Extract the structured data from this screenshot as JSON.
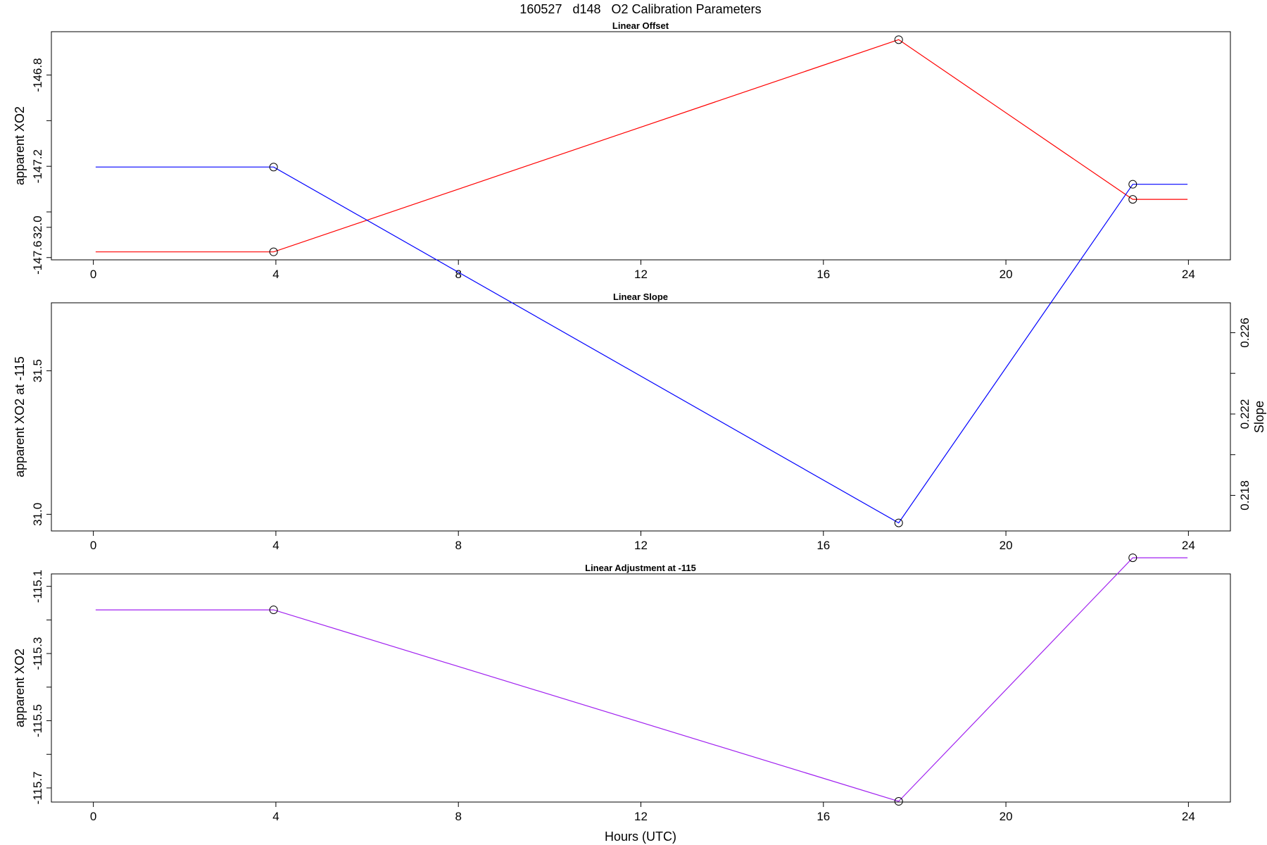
{
  "figure": {
    "title": "160527   d148   O2 Calibration Parameters"
  },
  "colors": {
    "offset": "#ff0000",
    "slope": "#0000ff",
    "adjustment": "#a020f0",
    "marker": "#000000"
  },
  "chart_data": [
    {
      "type": "line",
      "title": "Linear Offset",
      "ylabel": "apparent XO2",
      "xlabel": "",
      "x_ticks": [
        0,
        4,
        8,
        12,
        16,
        20,
        24
      ],
      "y_ticks": [
        -147.6,
        -147.4,
        -147.2,
        -147.0,
        -146.8
      ],
      "y_tick_labels": [
        "-147.6",
        "",
        "-147.2",
        "",
        "-146.8"
      ],
      "xlim": [
        -0.92,
        24.92
      ],
      "ylim": [
        -147.61,
        -146.61
      ],
      "series": [
        {
          "x": [
            0.05,
            3.95,
            17.65,
            22.78,
            23.98
          ],
          "y": [
            -147.575,
            -147.575,
            -146.645,
            -147.345,
            -147.345
          ]
        }
      ],
      "markers": {
        "x": [
          3.95,
          17.65,
          22.78
        ],
        "y": [
          -147.575,
          -146.645,
          -147.345
        ]
      }
    },
    {
      "type": "line",
      "title": "Linear Slope",
      "ylabel": "apparent XO2 at -115",
      "ylabel_right": "Slope",
      "xlabel": "",
      "x_ticks": [
        0,
        4,
        8,
        12,
        16,
        20,
        24
      ],
      "y_ticks": [
        31.0,
        31.5,
        32.0
      ],
      "y_tick_labels": [
        "31.0",
        "31.5",
        "32.0"
      ],
      "y2_ticks": [
        0.218,
        0.22,
        0.222,
        0.224,
        0.226
      ],
      "y2_tick_labels": [
        "0.218",
        "",
        "0.222",
        "",
        "0.226"
      ],
      "xlim": [
        -0.92,
        24.92
      ],
      "ylim": [
        30.942,
        31.737
      ],
      "series": [
        {
          "x": [
            0.05,
            3.95,
            17.65,
            22.78,
            23.98
          ],
          "y": [
            32.21,
            32.21,
            30.97,
            32.15,
            32.15
          ]
        }
      ],
      "markers": {
        "x": [
          3.95,
          17.65,
          22.78
        ],
        "y": [
          32.21,
          30.97,
          32.15
        ]
      }
    },
    {
      "type": "line",
      "title": "Linear Adjustment at -115",
      "ylabel": "apparent XO2",
      "xlabel": "Hours (UTC)",
      "x_ticks": [
        0,
        4,
        8,
        12,
        16,
        20,
        24
      ],
      "y_ticks": [
        -115.7,
        -115.6,
        -115.5,
        -115.4,
        -115.3,
        -115.2,
        -115.1
      ],
      "y_tick_labels": [
        "-115.7",
        "",
        "-115.5",
        "",
        "-115.3",
        "",
        "-115.1"
      ],
      "xlim": [
        -0.92,
        24.92
      ],
      "ylim": [
        -115.742,
        -115.063
      ],
      "series": [
        {
          "x": [
            0.05,
            3.95,
            17.65,
            22.78,
            23.98
          ],
          "y": [
            -115.17,
            -115.17,
            -115.74,
            -115.015,
            -115.015
          ]
        }
      ],
      "markers": {
        "x": [
          3.95,
          17.65,
          22.78
        ],
        "y": [
          -115.17,
          -115.74,
          -115.015
        ]
      }
    }
  ]
}
